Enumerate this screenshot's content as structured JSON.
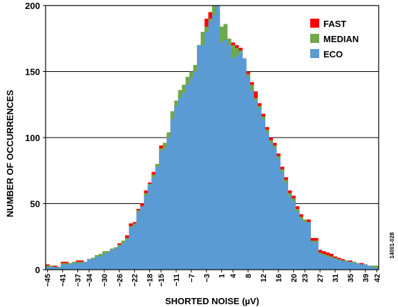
{
  "chart_data": {
    "type": "bar",
    "xlabel": "SHORTED NOISE (µV)",
    "ylabel": "NUMBER OF OCCURRENCES",
    "figure_id": "14001-028",
    "ylim": [
      0,
      200
    ],
    "yticks": [
      0,
      50,
      100,
      150,
      200
    ],
    "grid": true,
    "legend_position": "top-right",
    "xlim": [
      -45,
      43
    ],
    "xtick_labels": [
      "−45",
      "−41",
      "−37",
      "−34",
      "−30",
      "−26",
      "−22",
      "−18",
      "−15",
      "−11",
      "−7",
      "−3",
      "1",
      "4",
      "8",
      "12",
      "16",
      "20",
      "23",
      "27",
      "31",
      "35",
      "39",
      "42"
    ],
    "xtick_values": [
      -45,
      -41,
      -37,
      -34,
      -30,
      -26,
      -22,
      -18,
      -15,
      -11,
      -7,
      -3,
      1,
      4,
      8,
      12,
      16,
      20,
      23,
      27,
      31,
      35,
      39,
      42
    ],
    "bin_width": 1,
    "x": [
      -45,
      -44,
      -43,
      -42,
      -41,
      -40,
      -39,
      -38,
      -37,
      -36,
      -35,
      -34,
      -33,
      -32,
      -31,
      -30,
      -29,
      -28,
      -27,
      -26,
      -25,
      -24,
      -23,
      -22,
      -21,
      -20,
      -19,
      -18,
      -17,
      -16,
      -15,
      -14,
      -13,
      -12,
      -11,
      -10,
      -9,
      -8,
      -7,
      -6,
      -5,
      -4,
      -3,
      -2,
      -1,
      0,
      1,
      2,
      3,
      4,
      5,
      6,
      7,
      8,
      9,
      10,
      11,
      12,
      13,
      14,
      15,
      16,
      17,
      18,
      19,
      20,
      21,
      22,
      23,
      24,
      25,
      26,
      27,
      28,
      29,
      30,
      31,
      32,
      33,
      34,
      35,
      36,
      37,
      38,
      39,
      40,
      41,
      42
    ],
    "series": [
      {
        "name": "FAST",
        "color": "#ff0000",
        "values": [
          4,
          3,
          3,
          2,
          6,
          6,
          5,
          5,
          7,
          7,
          5,
          8,
          8,
          9,
          10,
          11,
          14,
          14,
          16,
          20,
          22,
          26,
          35,
          36,
          46,
          50,
          60,
          66,
          74,
          80,
          94,
          96,
          102,
          118,
          125,
          132,
          136,
          142,
          147,
          152,
          170,
          180,
          190,
          195,
          198,
          196,
          178,
          174,
          170,
          172,
          170,
          168,
          160,
          150,
          142,
          135,
          126,
          118,
          108,
          100,
          96,
          88,
          78,
          70,
          60,
          56,
          48,
          42,
          38,
          38,
          24,
          24,
          15,
          14,
          13,
          12,
          10,
          9,
          8,
          7,
          7,
          6,
          5,
          5,
          4,
          3,
          3,
          2
        ]
      },
      {
        "name": "MEDIAN",
        "color": "#6fa84a",
        "values": [
          3,
          3,
          2,
          2,
          5,
          5,
          5,
          6,
          6,
          6,
          6,
          8,
          9,
          11,
          12,
          14,
          14,
          16,
          17,
          19,
          22,
          24,
          33,
          35,
          45,
          48,
          58,
          65,
          72,
          80,
          92,
          96,
          104,
          120,
          128,
          136,
          140,
          146,
          150,
          155,
          170,
          180,
          184,
          190,
          200,
          196,
          184,
          186,
          175,
          170,
          168,
          166,
          155,
          148,
          140,
          130,
          124,
          116,
          106,
          98,
          94,
          86,
          76,
          68,
          58,
          54,
          46,
          40,
          38,
          36,
          22,
          22,
          13,
          12,
          11,
          10,
          9,
          8,
          7,
          7,
          6,
          6,
          5,
          4,
          4,
          3,
          3,
          3
        ]
      },
      {
        "name": "ECO",
        "color": "#5b9bd5",
        "values": [
          2,
          2,
          2,
          1,
          4,
          4,
          4,
          5,
          5,
          5,
          6,
          8,
          8,
          10,
          10,
          12,
          13,
          15,
          16,
          18,
          20,
          23,
          32,
          34,
          44,
          48,
          56,
          64,
          70,
          78,
          90,
          92,
          100,
          114,
          124,
          130,
          134,
          140,
          145,
          150,
          170,
          170,
          180,
          188,
          193,
          200,
          172,
          174,
          170,
          160,
          162,
          165,
          160,
          146,
          136,
          128,
          122,
          114,
          104,
          96,
          92,
          84,
          74,
          66,
          56,
          52,
          44,
          38,
          36,
          36,
          21,
          21,
          12,
          11,
          10,
          9,
          8,
          7,
          7,
          6,
          6,
          5,
          5,
          4,
          4,
          3,
          2,
          1
        ]
      }
    ]
  }
}
